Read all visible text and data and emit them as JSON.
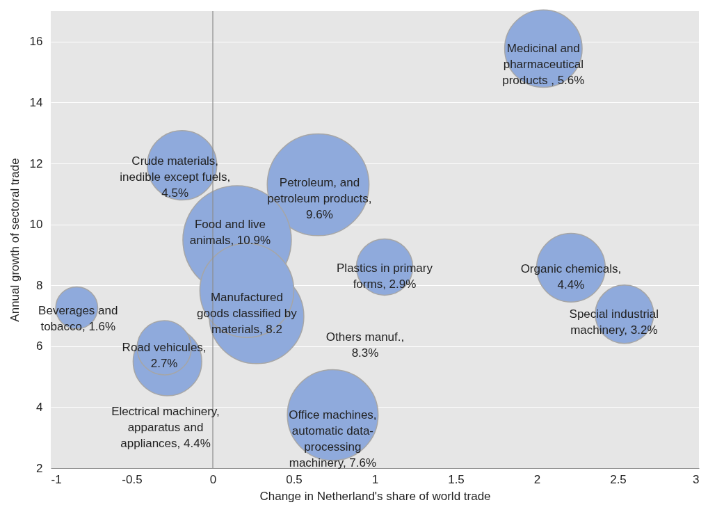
{
  "chart_data": {
    "type": "bubble",
    "xlabel": "Change in Netherland's share of world trade",
    "ylabel": "Annual growth of sectoral trade",
    "series": [
      {
        "color": "#8faadc",
        "x": [
          2.04,
          -0.19,
          0.65,
          0.15,
          0.27,
          0.21,
          1.06,
          2.21,
          2.54,
          -0.84,
          -0.28,
          -0.3,
          0.74
        ],
        "values": [
          15.77,
          11.94,
          11.3,
          9.49,
          6.98,
          7.83,
          8.6,
          8.58,
          7.05,
          7.26,
          5.5,
          5.95,
          3.74
        ],
        "sizes": [
          0.51,
          0.41,
          0.88,
          1,
          0.76,
          0.75,
          0.27,
          0.4,
          0.29,
          0.15,
          0.4,
          0.25,
          0.7
        ]
      }
    ],
    "xlim": [
      -1,
      3
    ],
    "xticks": [
      -1,
      -0.5,
      0,
      0.5,
      1,
      1.5,
      2,
      2.5,
      3
    ],
    "ylim": [
      2,
      17
    ],
    "yticks": [
      2,
      4,
      6,
      8,
      10,
      12,
      14,
      16
    ],
    "grid": "y",
    "ref_lines": [
      {
        "axis": "x",
        "value": 0,
        "color": "#8c8c8c"
      }
    ],
    "annotations": [
      {
        "text": "Medicinal and\npharmaceutical\nproducts , 5.6%",
        "x": 2.04,
        "y": 15.77
      },
      {
        "text": "Crude materials,\ninedible except fuels,\n4.5%",
        "x": -0.19,
        "y": 11.94
      },
      {
        "text": "Petroleum, and\npetroleum products,\n9.6%",
        "x": 0.65,
        "y": 11.3
      },
      {
        "text": "Food and live\nanimals, 10.9%",
        "x": 0.15,
        "y": 9.49
      },
      "Others manuf.,\n8.3%",
      {
        "text": "Manufactured\ngoods classified by\nmaterials, 8.2",
        "x": 0.21,
        "y": 7.83
      },
      {
        "text": "Plastics in primary\nforms, 2.9%",
        "x": 1.06,
        "y": 8.6
      },
      {
        "text": "Organic chemicals,\n4.4%",
        "x": 2.21,
        "y": 8.58
      },
      {
        "text": "Special industrial\nmachinery, 3.2%",
        "x": 2.54,
        "y": 7.05
      },
      {
        "text": "Beverages and\ntobacco, 1.6%",
        "x": -0.84,
        "y": 7.26
      },
      "Electrical machinery,\napparatus and\nappliances, 4.4%",
      {
        "text": "Road vehicules,\n2.7%",
        "x": -0.3,
        "y": 5.95
      },
      {
        "text": "Office machines,\nautomatic data-\nprocessing\nmachinery, 7.6%",
        "x": 0.74,
        "y": 3.74
      }
    ]
  }
}
